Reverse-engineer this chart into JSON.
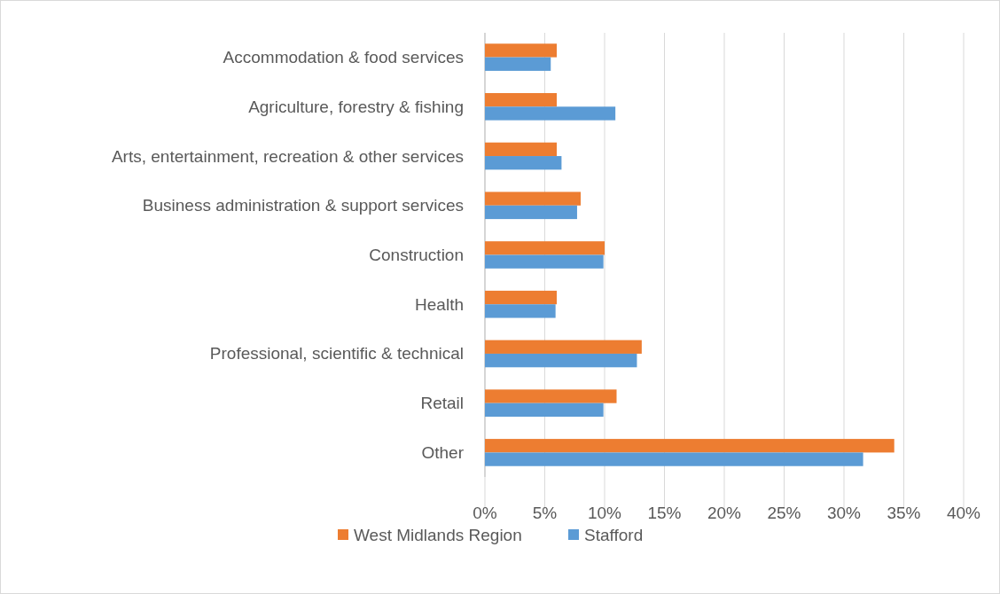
{
  "chart_data": {
    "type": "bar",
    "orientation": "horizontal",
    "categories": [
      "Accommodation & food services",
      "Agriculture, forestry & fishing",
      "Arts, entertainment, recreation & other services",
      "Business administration & support services",
      "Construction",
      "Health",
      "Professional, scientific & technical",
      "Retail",
      "Other"
    ],
    "series": [
      {
        "name": "West Midlands Region",
        "color": "#ed7d31",
        "values": [
          6.0,
          6.0,
          6.0,
          8.0,
          10.0,
          6.0,
          13.1,
          11.0,
          34.2
        ]
      },
      {
        "name": "Stafford",
        "color": "#5b9bd5",
        "values": [
          5.5,
          10.9,
          6.4,
          7.7,
          9.9,
          5.9,
          12.7,
          9.9,
          31.6
        ]
      }
    ],
    "xlim": [
      0,
      40
    ],
    "xticks": [
      {
        "value": 0,
        "label": "0%"
      },
      {
        "value": 5,
        "label": "5%"
      },
      {
        "value": 10,
        "label": "10%"
      },
      {
        "value": 15,
        "label": "15%"
      },
      {
        "value": 20,
        "label": "20%"
      },
      {
        "value": 25,
        "label": "25%"
      },
      {
        "value": 30,
        "label": "30%"
      },
      {
        "value": 35,
        "label": "35%"
      },
      {
        "value": 40,
        "label": "40%"
      }
    ],
    "grid": "x",
    "legend": "bottom"
  }
}
